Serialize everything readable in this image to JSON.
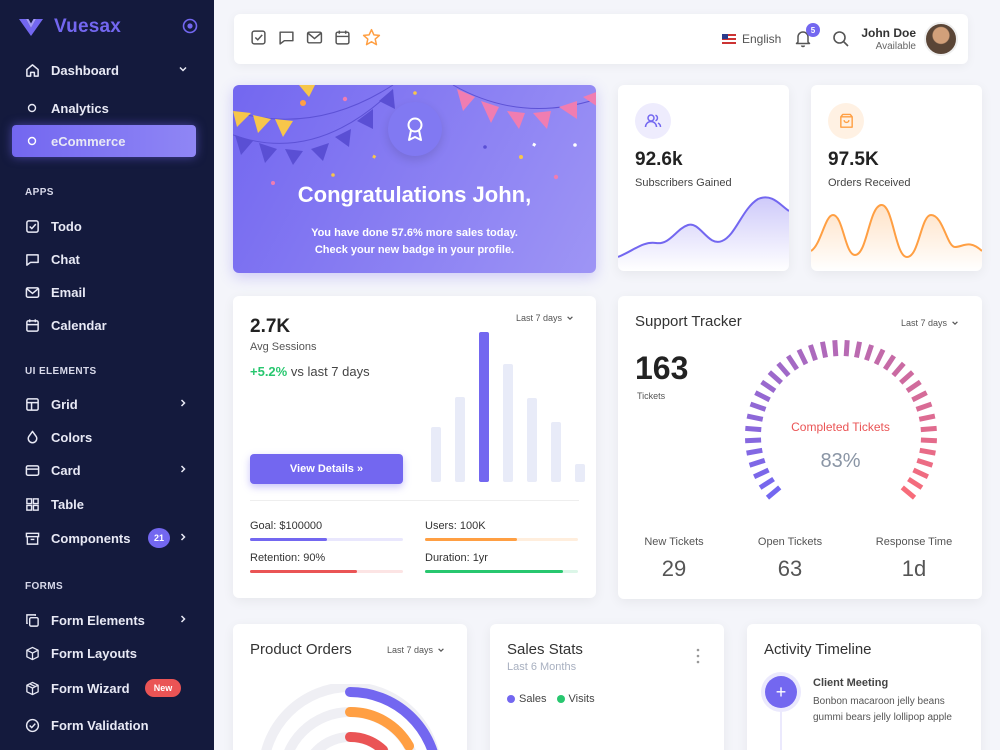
{
  "brand": {
    "name": "Vuesax"
  },
  "sidebar": {
    "dashboard": "Dashboard",
    "analytics": "Analytics",
    "ecommerce": "eCommerce",
    "sections": {
      "apps": "APPS",
      "ui": "UI ELEMENTS",
      "forms": "FORMS"
    },
    "apps": [
      "Todo",
      "Chat",
      "Email",
      "Calendar"
    ],
    "ui": {
      "grid": "Grid",
      "colors": "Colors",
      "card": "Card",
      "table": "Table",
      "components": "Components",
      "components_badge": "21"
    },
    "forms": {
      "elements": "Form Elements",
      "layouts": "Form Layouts",
      "wizard": "Form Wizard",
      "wizard_badge": "New",
      "validation": "Form Validation"
    }
  },
  "header": {
    "language": "English",
    "notifications": "5",
    "user_name": "John Doe",
    "user_status": "Available"
  },
  "congrats": {
    "title": "Congratulations John,",
    "line1_pre": "You have done ",
    "line1_pct": "57.6%",
    "line1_post": " more sales today.",
    "line2": "Check your new badge in your profile."
  },
  "subscribers": {
    "value": "92.6k",
    "label": "Subscribers Gained",
    "color": "#7367f0"
  },
  "orders": {
    "value": "97.5K",
    "label": "Orders Received",
    "color": "#ff9f43"
  },
  "sessions": {
    "value": "2.7K",
    "label": "Avg Sessions",
    "change": "+5.2%",
    "change_suffix": " vs last 7 days",
    "range": "Last 7 days",
    "button": "View Details »",
    "bars": [
      55,
      85,
      150,
      118,
      84,
      60,
      18
    ],
    "bar_max": 150,
    "highlight_index": 2,
    "goal": "Goal: $100000",
    "goal_pct": 0.5,
    "users": "Users: 100K",
    "users_pct": 0.6,
    "retention": "Retention: 90%",
    "retention_pct": 0.7,
    "duration": "Duration: 1yr",
    "duration_pct": 0.9
  },
  "support": {
    "title": "Support Tracker",
    "range": "Last 7 days",
    "tickets": "163",
    "tickets_label": "Tickets",
    "gauge_label": "Completed Tickets",
    "gauge_value": "83%",
    "gauge_pct": 0.83,
    "new_label": "New Tickets",
    "new_value": "29",
    "open_label": "Open Tickets",
    "open_value": "63",
    "resp_label": "Response Time",
    "resp_value": "1d"
  },
  "product_orders": {
    "title": "Product Orders",
    "range": "Last 7 days"
  },
  "sales_stats": {
    "title": "Sales Stats",
    "subtitle": "Last 6 Months",
    "sales": "Sales",
    "visits": "Visits"
  },
  "activity": {
    "title": "Activity Timeline",
    "item_title": "Client Meeting",
    "item_text": "Bonbon macaroon jelly beans gummi bears jelly lollipop apple"
  }
}
